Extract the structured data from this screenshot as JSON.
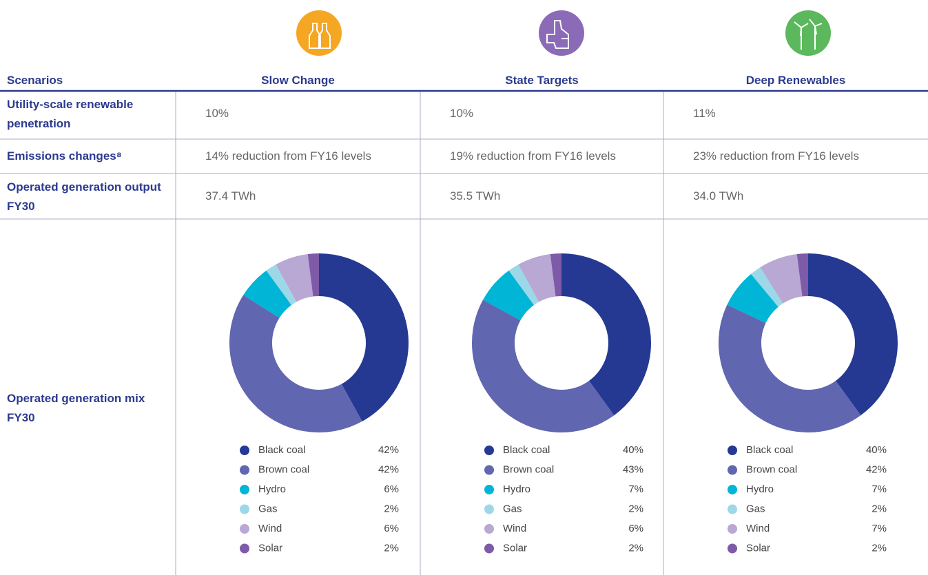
{
  "table": {
    "header": [
      "Scenarios",
      "Slow Change",
      "State Targets",
      "Deep Renewables"
    ],
    "rows": [
      [
        "Utility-scale renewable penetration",
        "10%",
        "10%",
        "11%"
      ],
      [
        "Emissions changes⁸",
        "14% reduction from FY16 levels",
        "19% reduction from FY16 levels",
        "23% reduction from FY16 levels"
      ],
      [
        "Operated generation output FY30",
        "37.4 TWh",
        "35.5 TWh",
        "34.0 TWh"
      ],
      [
        "Operated generation mix FY30"
      ]
    ]
  },
  "charts": [
    {
      "type": "pie",
      "donut": true,
      "categories": [
        "Black coal",
        "Brown coal",
        "Hydro",
        "Gas",
        "Wind",
        "Solar"
      ],
      "values": [
        42,
        42,
        6,
        2,
        6,
        2
      ],
      "value_labels": [
        "42%",
        "42%",
        "6%",
        "2%",
        "6%",
        "2%"
      ],
      "colors": [
        "#253993",
        "#6066b0",
        "#00b5d6",
        "#9cd8e8",
        "#b9a7d4",
        "#7e5ba8"
      ]
    },
    {
      "type": "pie",
      "donut": true,
      "categories": [
        "Black coal",
        "Brown coal",
        "Hydro",
        "Gas",
        "Wind",
        "Solar"
      ],
      "values": [
        40,
        43,
        7,
        2,
        6,
        2
      ],
      "value_labels": [
        "40%",
        "43%",
        "7%",
        "2%",
        "6%",
        "2%"
      ],
      "colors": [
        "#253993",
        "#6066b0",
        "#00b5d6",
        "#9cd8e8",
        "#b9a7d4",
        "#7e5ba8"
      ]
    },
    {
      "type": "pie",
      "donut": true,
      "categories": [
        "Black coal",
        "Brown coal",
        "Hydro",
        "Gas",
        "Wind",
        "Solar"
      ],
      "values": [
        40,
        42,
        7,
        2,
        7,
        2
      ],
      "value_labels": [
        "40%",
        "42%",
        "7%",
        "2%",
        "7%",
        "2%"
      ],
      "colors": [
        "#253993",
        "#6066b0",
        "#00b5d6",
        "#9cd8e8",
        "#b9a7d4",
        "#7e5ba8"
      ]
    }
  ]
}
